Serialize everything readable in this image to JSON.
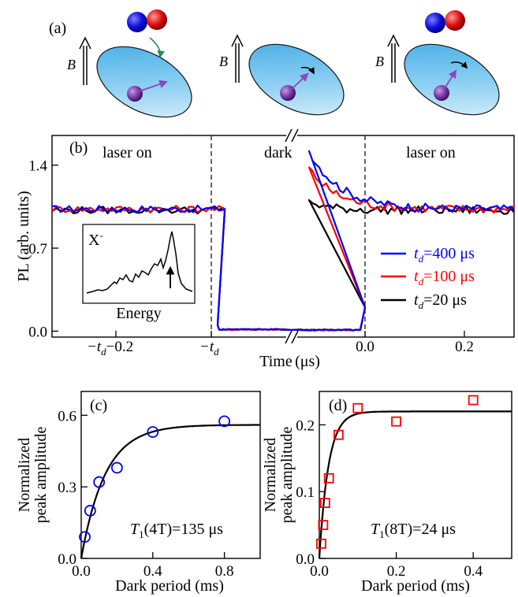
{
  "panel_a": {
    "label": "(a)",
    "field_label": "B",
    "colors": {
      "blue_sphere": "#1010e0",
      "red_sphere": "#e01010",
      "disk": "#5ab8ea",
      "spin_ball": "#7a3aa8",
      "spin_arrow": "#8a4ab8",
      "green_arrow": "#2e8b57"
    },
    "stages": [
      "capture",
      "dark-precession",
      "readout"
    ]
  },
  "chart_data": [
    {
      "id": "b",
      "type": "line",
      "panel_label": "(b)",
      "ylabel": "PL (arb. units)",
      "xlabel": "Time (μs)",
      "xlabel_main": "Time",
      "xlabel_unit": "(μs)",
      "ylim": [
        -0.05,
        1.65
      ],
      "yticks": [
        0.0,
        0.7,
        1.4
      ],
      "ytick_labels": [
        "0.0",
        "0.7",
        "1.4"
      ],
      "xtick_labels": [
        {
          "main": "−t",
          "sub": "d",
          "tail": "−0.2"
        },
        {
          "main": "−t",
          "sub": "d",
          "tail": ""
        },
        {
          "main": "0.0",
          "sub": "",
          "tail": ""
        },
        {
          "main": "0.2",
          "sub": "",
          "tail": ""
        }
      ],
      "regions": [
        "laser on",
        "dark",
        "laser on"
      ],
      "axis_break": true,
      "segments": {
        "left": {
          "x": [
            -0.3,
            -0.02
          ],
          "ref": "-t_d"
        },
        "right": {
          "x": [
            -0.02,
            0.3
          ],
          "ref": "0"
        }
      },
      "series": [
        {
          "name_main": "t",
          "name_sub": "d",
          "name_rest": "=400 μs",
          "color": "#0000ff",
          "steady": 1.03,
          "peak": 1.58,
          "decay": 0.045
        },
        {
          "name_main": "t",
          "name_sub": "d",
          "name_rest": "=100 μs",
          "color": "#ff0000",
          "steady": 1.03,
          "peak": 1.42,
          "decay": 0.04
        },
        {
          "name_main": "t",
          "name_sub": "d",
          "name_rest": "=20 μs",
          "color": "#000000",
          "steady": 1.02,
          "peak": 1.1,
          "decay": 0.03
        }
      ],
      "inset": {
        "title_main": "X",
        "title_sup": "-",
        "xlabel": "Energy"
      }
    },
    {
      "id": "c",
      "type": "scatter",
      "panel_label": "(c)",
      "ylabel": [
        "Normalized",
        "peak amplitude"
      ],
      "xlabel": "Dark period (ms)",
      "xlim": [
        0,
        1.0
      ],
      "ylim": [
        0,
        0.7
      ],
      "xticks": [
        0.0,
        0.4,
        0.8
      ],
      "xtick_labels": [
        "0.0",
        "0.4",
        "0.8"
      ],
      "yticks": [
        0.0,
        0.3,
        0.6
      ],
      "ytick_labels": [
        "0.0",
        "0.3",
        "0.6"
      ],
      "marker": "circle",
      "marker_color": "#0000ff",
      "points": {
        "x": [
          0.02,
          0.05,
          0.1,
          0.2,
          0.4,
          0.8
        ],
        "y": [
          0.09,
          0.2,
          0.32,
          0.38,
          0.53,
          0.575
        ]
      },
      "fit": {
        "amplitude": 0.56,
        "tau_ms": 0.135,
        "x0": 0.0
      },
      "annotation": {
        "main": "T",
        "sub": "1",
        "rest": "(4T)=135 μs"
      }
    },
    {
      "id": "d",
      "type": "scatter",
      "panel_label": "(d)",
      "ylabel": [
        "Normalized",
        "peak amplitude"
      ],
      "xlabel": "Dark period (ms)",
      "xlim": [
        0,
        0.5
      ],
      "ylim": [
        0,
        0.25
      ],
      "xticks": [
        0.0,
        0.2,
        0.4
      ],
      "xtick_labels": [
        "0.0",
        "0.2",
        "0.4"
      ],
      "yticks": [
        0.0,
        0.1,
        0.2
      ],
      "ytick_labels": [
        "0.0",
        "0.1",
        "0.2"
      ],
      "marker": "square",
      "marker_color": "#ff0000",
      "points": {
        "x": [
          0.005,
          0.01,
          0.015,
          0.025,
          0.05,
          0.1,
          0.2,
          0.4
        ],
        "y": [
          0.022,
          0.05,
          0.083,
          0.12,
          0.185,
          0.225,
          0.205,
          0.237
        ]
      },
      "fit": {
        "amplitude": 0.22,
        "tau_ms": 0.024,
        "x0": 0.0
      },
      "annotation": {
        "main": "T",
        "sub": "1",
        "rest": "(8T)=24 μs"
      }
    }
  ]
}
